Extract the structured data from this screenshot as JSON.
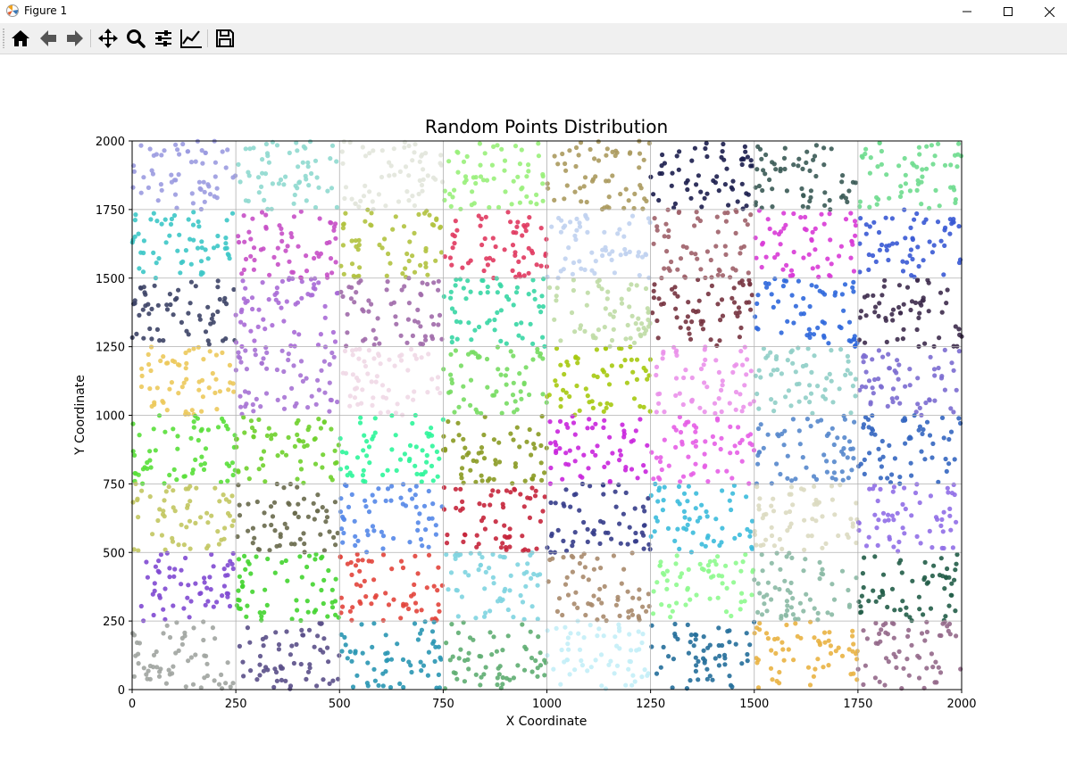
{
  "window": {
    "title": "Figure 1",
    "controls": [
      "minimize",
      "maximize",
      "close"
    ]
  },
  "toolbar": {
    "buttons": [
      {
        "name": "home",
        "icon": "home-icon",
        "tooltip": ""
      },
      {
        "name": "back",
        "icon": "arrow-left-icon"
      },
      {
        "name": "forward",
        "icon": "arrow-right-icon"
      },
      {
        "name": "pan",
        "icon": "move-icon"
      },
      {
        "name": "zoom",
        "icon": "magnifier-icon"
      },
      {
        "name": "configure-subplots",
        "icon": "sliders-icon"
      },
      {
        "name": "edit-axis",
        "icon": "line-chart-icon"
      },
      {
        "name": "save",
        "icon": "floppy-disk-icon"
      }
    ]
  },
  "chart_data": {
    "type": "scatter",
    "title": "Random Points Distribution",
    "xlabel": "X Coordinate",
    "ylabel": "Y Coordinate",
    "xlim": [
      0,
      2000
    ],
    "ylim": [
      0,
      2000
    ],
    "xticks": [
      "0",
      "250",
      "500",
      "750",
      "1000",
      "1250",
      "1500",
      "1750",
      "2000"
    ],
    "yticks": [
      "0",
      "250",
      "500",
      "750",
      "1000",
      "1250",
      "1500",
      "1750",
      "2000"
    ],
    "grid": true,
    "cell_size": 250,
    "points_per_cell": 60,
    "cells": [
      {
        "row": 7,
        "colors": [
          "#9b9be0",
          "#8fd9cf",
          "#e2e6db",
          "#99f07a",
          "#ab9a5e",
          "#1b1d4d",
          "#3a5a55",
          "#6edc8e"
        ]
      },
      {
        "row": 6,
        "colors": [
          "#3cc6c6",
          "#c64fc6",
          "#b1c23f",
          "#e0385f",
          "#c0d2ef",
          "#9e6169",
          "#d83ad6",
          "#3859d4"
        ]
      },
      {
        "row": 5,
        "colors": [
          "#3c4366",
          "#a86ad6",
          "#a06aaa",
          "#37d6a4",
          "#bfdca5",
          "#76333f",
          "#2e67db",
          "#3d2b4c"
        ]
      },
      {
        "row": 4,
        "colors": [
          "#ecc95b",
          "#a672d4",
          "#f0d8e6",
          "#77dc62",
          "#a6c910",
          "#ea91ea",
          "#8fcec6",
          "#7b6cd0"
        ]
      },
      {
        "row": 3,
        "colors": [
          "#59df3a",
          "#6fd02c",
          "#2df59a",
          "#8a9a22",
          "#c925dd",
          "#e55ee6",
          "#5587cc",
          "#3466c0"
        ]
      },
      {
        "row": 2,
        "colors": [
          "#c2c760",
          "#68694b",
          "#5487e8",
          "#c5253b",
          "#353c8a",
          "#3bbbdb",
          "#dcdac1",
          "#906ee7"
        ]
      },
      {
        "row": 1,
        "colors": [
          "#7f49d1",
          "#43d42f",
          "#e2443b",
          "#7ed4e0",
          "#a98a6b",
          "#8ef98e",
          "#89b9a4",
          "#225d48"
        ]
      },
      {
        "row": 0,
        "colors": [
          "#a0a4a0",
          "#5a4f88",
          "#2996b3",
          "#5ead71",
          "#c3eef7",
          "#236e9a",
          "#e9b342",
          "#93688a"
        ]
      }
    ]
  }
}
